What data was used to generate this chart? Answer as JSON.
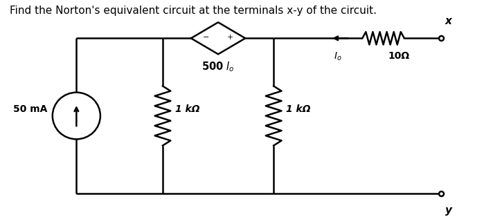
{
  "title": "Find the Norton's equivalent circuit at the terminals x-y of the circuit.",
  "title_fontsize": 11,
  "bg_color": "#ffffff",
  "line_color": "#000000",
  "line_width": 1.8,
  "xL": 0.155,
  "xM1": 0.33,
  "xM2": 0.555,
  "xR1": 0.68,
  "xR2": 0.895,
  "yB": 0.09,
  "yT": 0.82,
  "cs_label": "50 mA",
  "r1_label": "1 kΩ",
  "dep_label": "500 Iₒ",
  "r2_label": "1 kΩ",
  "res10_label": "10Ω",
  "Io_label": "Iₒ",
  "terminal_x": "x",
  "terminal_y": "y"
}
